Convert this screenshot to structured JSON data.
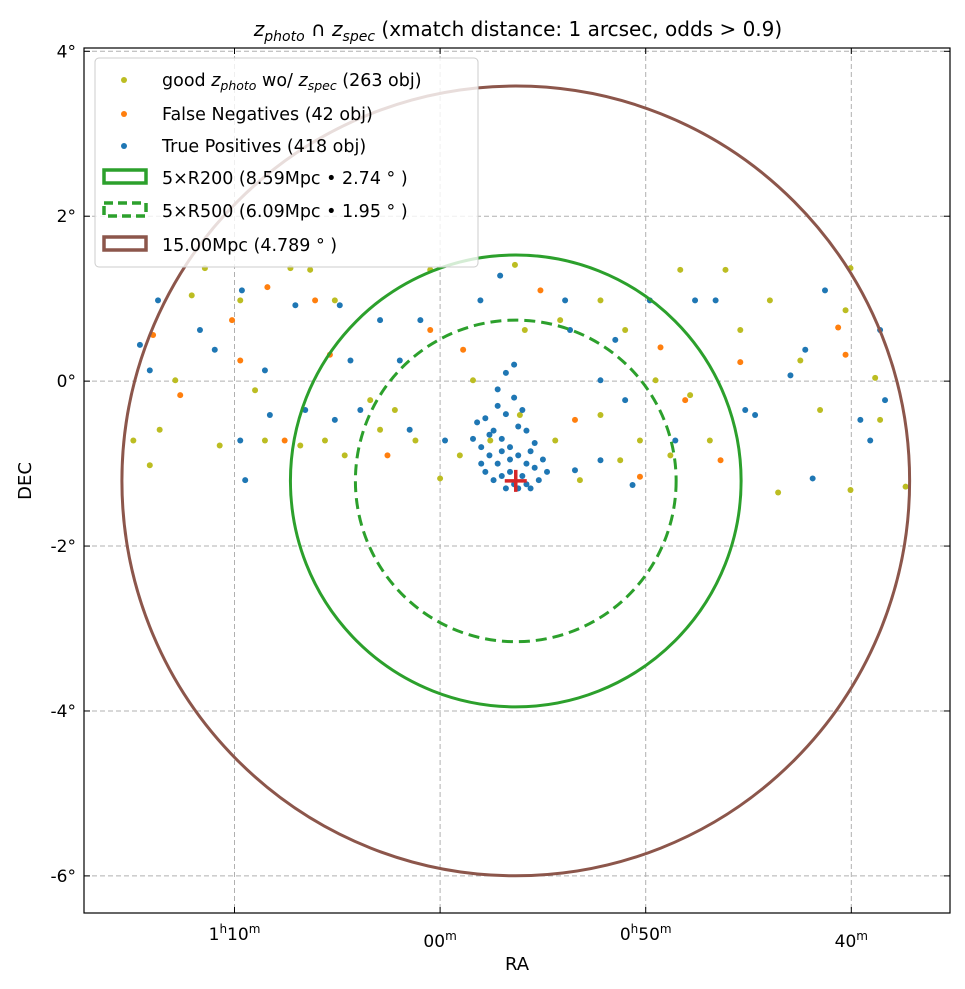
{
  "chart_data": {
    "type": "scatter",
    "title": {
      "z1": "z",
      "sub1": "photo",
      "cap": " ∩ ",
      "z2": "z",
      "sub2": "spec",
      "rest": " (xmatch distance: 1 arcsec, odds > 0.9)"
    },
    "xlabel": "RA",
    "ylabel": "DEC",
    "xlim_deg": [
      19.33,
      8.8
    ],
    "ylim_deg": [
      -6.45,
      4.04
    ],
    "grid": true,
    "legend_position": "top-left",
    "x_ticks": [
      {
        "value": 17.5,
        "main": "1",
        "sup1": "h",
        "mid": "10",
        "sup2": "m"
      },
      {
        "value": 15.0,
        "main": "",
        "sup1": "",
        "mid": "00",
        "sup2": "m"
      },
      {
        "value": 12.5,
        "main": "0",
        "sup1": "h",
        "mid": "50",
        "sup2": "m"
      },
      {
        "value": 10.0,
        "main": "",
        "sup1": "",
        "mid": "40",
        "sup2": "m"
      }
    ],
    "y_ticks": [
      {
        "value": 4,
        "label": "4°"
      },
      {
        "value": 2,
        "label": "2°"
      },
      {
        "value": 0,
        "label": "0°"
      },
      {
        "value": -2,
        "label": "-2°"
      },
      {
        "value": -4,
        "label": "-4°"
      },
      {
        "value": -6,
        "label": "-6°"
      }
    ],
    "center": {
      "ra": 14.08,
      "dec": -1.21,
      "color": "#d62728"
    },
    "circles": [
      {
        "name": "5xR200",
        "radius_deg": 2.74,
        "color": "#2ca02c",
        "dashed": false
      },
      {
        "name": "5xR500",
        "radius_deg": 1.95,
        "color": "#2ca02c",
        "dashed": true
      },
      {
        "name": "15Mpc",
        "radius_deg": 4.789,
        "color": "#8c564b",
        "dashed": false
      }
    ],
    "legend": [
      {
        "type": "dot",
        "color": "#bcbd22",
        "pre": "good ",
        "z": "z",
        "sub": "photo",
        "mid": " wo/ ",
        "z2": "z",
        "sub2": "spec",
        "post": " (263 obj)"
      },
      {
        "type": "dot",
        "color": "#ff7f0e",
        "text": "False Negatives (42 obj)"
      },
      {
        "type": "dot",
        "color": "#1f77b4",
        "text": "True Positives (418 obj)"
      },
      {
        "type": "rect",
        "color": "#2ca02c",
        "dashed": false,
        "text": "5×R200 (8.59Mpc • 2.74$^\\circ$)",
        "display": "5×R200 (8.59Mpc • 2.74 ° )"
      },
      {
        "type": "rect",
        "color": "#2ca02c",
        "dashed": true,
        "display": "5×R500 (6.09Mpc • 1.95 ° )"
      },
      {
        "type": "rect",
        "color": "#8c564b",
        "dashed": false,
        "display": "15.00Mpc (4.789 ° )"
      }
    ],
    "series": [
      {
        "name": "good zphoto wo/ zspec",
        "color": "#bcbd22",
        "points": [
          [
            18.73,
            -0.72
          ],
          [
            18.53,
            -1.02
          ],
          [
            17.86,
            1.37
          ],
          [
            18.02,
            1.04
          ],
          [
            16.82,
            1.37
          ],
          [
            16.58,
            1.35
          ],
          [
            17.25,
            -0.11
          ],
          [
            17.13,
            -0.72
          ],
          [
            16.7,
            -0.78
          ],
          [
            16.4,
            -0.72
          ],
          [
            16.16,
            -0.9
          ],
          [
            15.85,
            -0.23
          ],
          [
            15.55,
            -0.35
          ],
          [
            15.3,
            -0.72
          ],
          [
            15.0,
            -1.18
          ],
          [
            15.12,
            1.35
          ],
          [
            14.76,
            -0.9
          ],
          [
            14.6,
            0.01
          ],
          [
            14.39,
            -0.72
          ],
          [
            14.09,
            1.41
          ],
          [
            13.97,
            0.62
          ],
          [
            13.6,
            -0.72
          ],
          [
            13.3,
            -1.2
          ],
          [
            13.05,
            0.98
          ],
          [
            12.81,
            -0.96
          ],
          [
            12.57,
            -0.72
          ],
          [
            12.38,
            0.01
          ],
          [
            12.2,
            -0.9
          ],
          [
            11.96,
            -0.17
          ],
          [
            11.72,
            -0.72
          ],
          [
            12.08,
            1.35
          ],
          [
            11.35,
            0.62
          ],
          [
            10.99,
            0.98
          ],
          [
            10.89,
            -1.35
          ],
          [
            10.62,
            0.25
          ],
          [
            10.38,
            -0.35
          ],
          [
            10.07,
            0.86
          ],
          [
            10.01,
            -1.32
          ],
          [
            9.71,
            0.04
          ],
          [
            9.65,
            -0.47
          ],
          [
            9.34,
            -1.28
          ],
          [
            11.53,
            1.35
          ],
          [
            10.01,
            1.37
          ],
          [
            13.54,
            0.74
          ],
          [
            15.73,
            -0.59
          ],
          [
            13.05,
            -0.41
          ],
          [
            17.68,
            -0.78
          ],
          [
            18.22,
            0.01
          ],
          [
            18.41,
            -0.59
          ],
          [
            17.43,
            0.98
          ],
          [
            16.28,
            0.98
          ],
          [
            14.03,
            -0.41
          ],
          [
            12.75,
            0.62
          ]
        ]
      },
      {
        "name": "False Negatives",
        "color": "#ff7f0e",
        "points": [
          [
            18.49,
            0.56
          ],
          [
            17.53,
            0.74
          ],
          [
            17.1,
            1.14
          ],
          [
            16.34,
            0.32
          ],
          [
            15.64,
            -0.9
          ],
          [
            14.72,
            0.38
          ],
          [
            13.78,
            1.1
          ],
          [
            12.32,
            0.41
          ],
          [
            12.02,
            -0.23
          ],
          [
            11.35,
            0.23
          ],
          [
            10.16,
            0.65
          ],
          [
            10.07,
            0.32
          ],
          [
            12.57,
            -1.16
          ],
          [
            18.16,
            -0.17
          ],
          [
            16.89,
            -0.72
          ],
          [
            16.52,
            0.98
          ],
          [
            13.36,
            -0.47
          ],
          [
            15.12,
            0.62
          ],
          [
            11.59,
            -0.96
          ],
          [
            17.43,
            0.25
          ]
        ]
      },
      {
        "name": "True Positives",
        "color": "#1f77b4",
        "points": [
          [
            18.53,
            0.13
          ],
          [
            18.65,
            0.44
          ],
          [
            18.43,
            0.98
          ],
          [
            17.92,
            0.62
          ],
          [
            17.74,
            0.38
          ],
          [
            17.41,
            1.1
          ],
          [
            17.37,
            -1.2
          ],
          [
            17.13,
            0.13
          ],
          [
            16.76,
            0.92
          ],
          [
            16.64,
            -0.35
          ],
          [
            16.22,
            0.92
          ],
          [
            16.09,
            0.25
          ],
          [
            15.97,
            -0.35
          ],
          [
            15.73,
            0.74
          ],
          [
            15.49,
            0.25
          ],
          [
            15.37,
            -0.59
          ],
          [
            15.24,
            0.74
          ],
          [
            14.94,
            -0.72
          ],
          [
            14.51,
            0.98
          ],
          [
            14.27,
            1.28
          ],
          [
            13.48,
            0.98
          ],
          [
            13.42,
            0.62
          ],
          [
            13.05,
            0.01
          ],
          [
            12.87,
            0.5
          ],
          [
            12.75,
            -0.23
          ],
          [
            12.66,
            -1.26
          ],
          [
            12.45,
            0.98
          ],
          [
            12.14,
            -0.72
          ],
          [
            11.9,
            0.98
          ],
          [
            11.65,
            0.98
          ],
          [
            11.29,
            -0.35
          ],
          [
            11.17,
            -0.41
          ],
          [
            10.74,
            0.07
          ],
          [
            10.56,
            0.38
          ],
          [
            10.47,
            -1.18
          ],
          [
            10.32,
            1.1
          ],
          [
            9.89,
            -0.47
          ],
          [
            9.59,
            -0.23
          ],
          [
            9.65,
            0.62
          ],
          [
            9.77,
            -0.72
          ],
          [
            13.36,
            -1.08
          ],
          [
            13.05,
            -0.96
          ],
          [
            17.43,
            -0.72
          ],
          [
            17.07,
            -0.41
          ],
          [
            16.28,
            -0.47
          ],
          [
            14.55,
            -0.5
          ],
          [
            14.45,
            -0.45
          ],
          [
            14.35,
            -0.6
          ],
          [
            14.25,
            -0.7
          ],
          [
            14.15,
            -0.8
          ],
          [
            14.05,
            -0.9
          ],
          [
            13.95,
            -1.0
          ],
          [
            14.0,
            -1.15
          ],
          [
            14.1,
            -1.25
          ],
          [
            14.2,
            -1.3
          ],
          [
            13.9,
            -1.3
          ],
          [
            13.8,
            -1.2
          ],
          [
            13.85,
            -1.05
          ],
          [
            14.3,
            -1.0
          ],
          [
            14.4,
            -0.9
          ],
          [
            14.5,
            -0.8
          ],
          [
            14.6,
            -0.7
          ],
          [
            14.2,
            -0.4
          ],
          [
            14.1,
            -0.2
          ],
          [
            14.3,
            -0.3
          ],
          [
            13.95,
            -0.6
          ],
          [
            13.85,
            -0.75
          ],
          [
            14.05,
            -0.55
          ],
          [
            14.15,
            -1.1
          ],
          [
            14.25,
            -1.15
          ],
          [
            13.95,
            -1.25
          ],
          [
            14.35,
            -1.2
          ],
          [
            13.75,
            -0.95
          ],
          [
            14.45,
            -1.1
          ],
          [
            14.0,
            -0.35
          ],
          [
            14.2,
            0.1
          ],
          [
            14.1,
            0.2
          ],
          [
            14.3,
            -0.1
          ],
          [
            14.15,
            -0.95
          ],
          [
            14.05,
            -1.3
          ],
          [
            14.25,
            -0.85
          ],
          [
            13.9,
            -0.85
          ],
          [
            14.5,
            -1.0
          ],
          [
            13.7,
            -1.1
          ],
          [
            14.4,
            -0.65
          ]
        ]
      }
    ]
  }
}
